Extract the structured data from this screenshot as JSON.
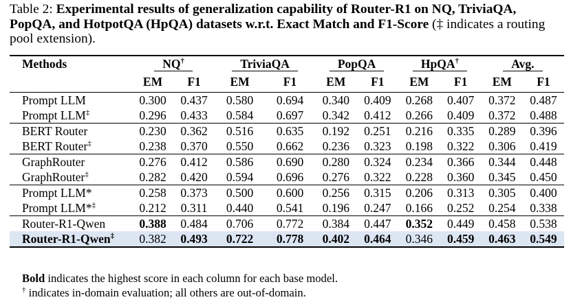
{
  "caption": {
    "label": "Table 2:",
    "bold": "Experimental results of generalization capability of Router-R1 on NQ, TriviaQA, PopQA, and HotpotQA (HpQA) datasets w.r.t. Exact Match and F1-Score",
    "rest": " (‡ indicates a routing pool extension)."
  },
  "header": {
    "methods": "Methods",
    "groups": [
      {
        "name": "NQ",
        "sup": "†"
      },
      {
        "name": "TriviaQA",
        "sup": ""
      },
      {
        "name": "PopQA",
        "sup": ""
      },
      {
        "name": "HpQA",
        "sup": "†"
      },
      {
        "name": "Avg.",
        "sup": ""
      }
    ],
    "em": "EM",
    "f1": "F1"
  },
  "groups": [
    {
      "rows": [
        {
          "name": "Prompt LLM",
          "sup": "",
          "vals": [
            "0.300",
            "0.437",
            "0.580",
            "0.694",
            "0.340",
            "0.409",
            "0.268",
            "0.407",
            "0.372",
            "0.487"
          ]
        },
        {
          "name": "Prompt LLM",
          "sup": "‡",
          "vals": [
            "0.296",
            "0.433",
            "0.584",
            "0.697",
            "0.342",
            "0.412",
            "0.266",
            "0.409",
            "0.372",
            "0.488"
          ]
        }
      ]
    },
    {
      "rows": [
        {
          "name": "BERT Router",
          "sup": "",
          "vals": [
            "0.230",
            "0.362",
            "0.516",
            "0.635",
            "0.192",
            "0.251",
            "0.216",
            "0.335",
            "0.289",
            "0.396"
          ]
        },
        {
          "name": "BERT Router",
          "sup": "‡",
          "vals": [
            "0.238",
            "0.370",
            "0.550",
            "0.662",
            "0.236",
            "0.323",
            "0.198",
            "0.322",
            "0.306",
            "0.419"
          ]
        }
      ]
    },
    {
      "rows": [
        {
          "name": "GraphRouter",
          "sup": "",
          "vals": [
            "0.276",
            "0.412",
            "0.586",
            "0.690",
            "0.280",
            "0.324",
            "0.234",
            "0.366",
            "0.344",
            "0.448"
          ]
        },
        {
          "name": "GraphRouter",
          "sup": "‡",
          "vals": [
            "0.282",
            "0.420",
            "0.594",
            "0.696",
            "0.276",
            "0.322",
            "0.228",
            "0.360",
            "0.345",
            "0.450"
          ]
        }
      ]
    },
    {
      "rows": [
        {
          "name": "Prompt LLM*",
          "sup": "",
          "vals": [
            "0.258",
            "0.373",
            "0.500",
            "0.600",
            "0.256",
            "0.315",
            "0.206",
            "0.313",
            "0.305",
            "0.400"
          ]
        },
        {
          "name": "Prompt LLM*",
          "sup": "‡",
          "vals": [
            "0.212",
            "0.311",
            "0.440",
            "0.541",
            "0.196",
            "0.247",
            "0.166",
            "0.252",
            "0.254",
            "0.338"
          ]
        }
      ]
    },
    {
      "rows": [
        {
          "name": "Router-R1-Qwen",
          "sup": "",
          "vals": [
            "0.388",
            "0.484",
            "0.706",
            "0.772",
            "0.384",
            "0.447",
            "0.352",
            "0.449",
            "0.458",
            "0.538"
          ]
        },
        {
          "name": "Router-R1-Qwen",
          "sup": "‡",
          "vals": [
            "0.382",
            "0.493",
            "0.722",
            "0.778",
            "0.402",
            "0.464",
            "0.346",
            "0.459",
            "0.463",
            "0.549"
          ]
        }
      ]
    }
  ],
  "notes": {
    "line1_bold": "Bold",
    "line1_rest": " indicates the highest score in each column for each base model.",
    "line2_sym": "†",
    "line2_rest": " indicates in-domain evaluation; all others are out-of-domain."
  },
  "colors": {
    "highlight_row": "#dce6f3"
  }
}
